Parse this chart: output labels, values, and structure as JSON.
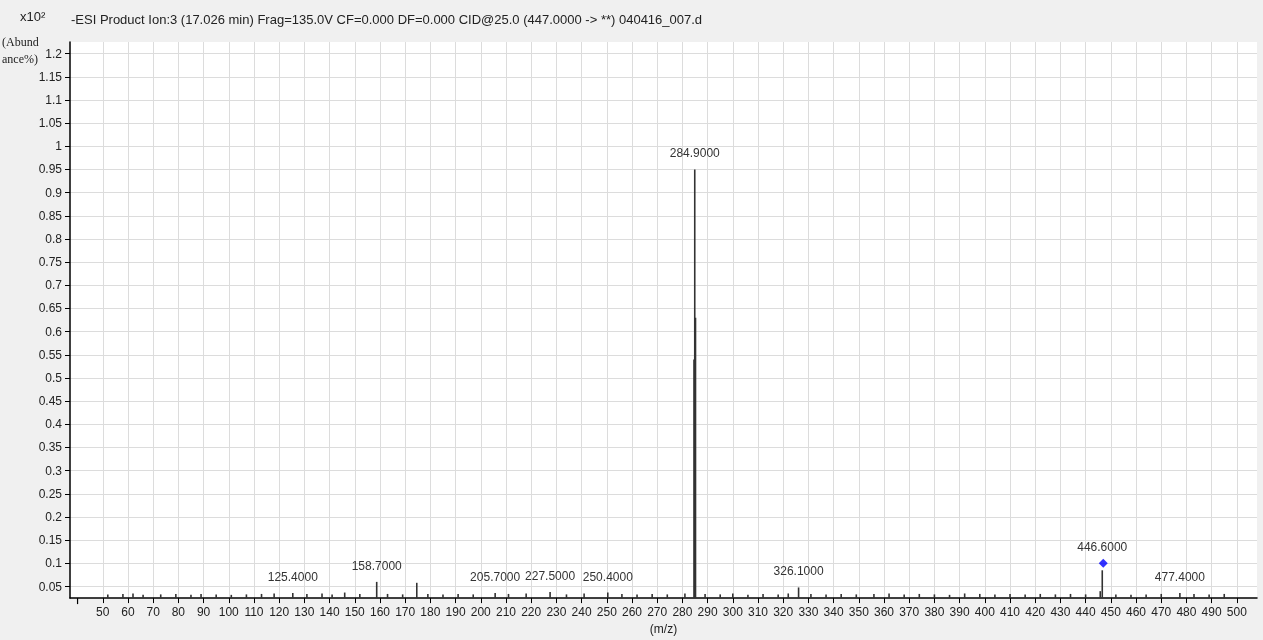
{
  "chart_data": {
    "type": "bar",
    "title": "-ESI Product Ion:3 (17.026 min) Frag=135.0V CF=0.000 DF=0.000 CID@25.0 (447.0000 -> **) 040416_007.d",
    "xlabel": "(m/z)",
    "ylabel": "(Abundance%)",
    "annotations": [
      "x10²",
      {
        "text": "125.4000",
        "x": 125.4,
        "y": 0.036
      },
      {
        "text": "158.7000",
        "x": 158.7,
        "y": 0.06
      },
      {
        "text": "205.7000",
        "x": 205.7,
        "y": 0.036
      },
      {
        "text": "227.5000",
        "x": 227.5,
        "y": 0.038
      },
      {
        "text": "250.4000",
        "x": 250.4,
        "y": 0.037
      },
      {
        "text": "284.9000",
        "x": 284.9,
        "y": 0.95
      },
      {
        "text": "326.1000",
        "x": 326.1,
        "y": 0.048
      },
      {
        "text": "446.6000",
        "x": 446.6,
        "y": 0.1
      },
      {
        "text": "477.4000",
        "x": 477.4,
        "y": 0.036
      }
    ],
    "series": [
      {
        "color": "#333333",
        "x": [
          52,
          58,
          62,
          66,
          73,
          79,
          85,
          89,
          95,
          101,
          107,
          113,
          118,
          125.4,
          131,
          137,
          141,
          146,
          152,
          158.7,
          163,
          169,
          174.6,
          179,
          185,
          191,
          197,
          205.7,
          211,
          218,
          227.5,
          234,
          241,
          250.4,
          256,
          262,
          268,
          274,
          281,
          284.6,
          284.9,
          285.2,
          289,
          295,
          300,
          306,
          312,
          318,
          322,
          326.1,
          331,
          337,
          343,
          349,
          356,
          362,
          368,
          374,
          380,
          386,
          392,
          398,
          404,
          410,
          416,
          422,
          428,
          434,
          440,
          445.8,
          446.6,
          452,
          458,
          464,
          470,
          477.4,
          483,
          489,
          495
        ],
        "values": [
          0.033,
          0.034,
          0.035,
          0.032,
          0.033,
          0.034,
          0.032,
          0.034,
          0.033,
          0.032,
          0.033,
          0.034,
          0.035,
          0.036,
          0.034,
          0.035,
          0.033,
          0.037,
          0.034,
          0.06,
          0.034,
          0.033,
          0.058,
          0.034,
          0.033,
          0.034,
          0.033,
          0.036,
          0.034,
          0.035,
          0.038,
          0.033,
          0.035,
          0.037,
          0.034,
          0.033,
          0.034,
          0.033,
          0.035,
          0.54,
          0.95,
          0.63,
          0.034,
          0.033,
          0.035,
          0.032,
          0.034,
          0.033,
          0.035,
          0.048,
          0.034,
          0.033,
          0.034,
          0.033,
          0.034,
          0.035,
          0.033,
          0.034,
          0.033,
          0.032,
          0.035,
          0.034,
          0.033,
          0.034,
          0.033,
          0.034,
          0.033,
          0.034,
          0.033,
          0.04,
          0.085,
          0.033,
          0.032,
          0.033,
          0.034,
          0.036,
          0.034,
          0.033,
          0.034
        ]
      },
      {
        "type": "scatter",
        "marker": "diamond",
        "color": "#0000ff",
        "x": [
          447
        ],
        "values": [
          0.1
        ]
      }
    ],
    "xlim": [
      37,
      508
    ],
    "xticks": [
      {
        "value": 40,
        "label": null
      },
      50,
      60,
      70,
      80,
      90,
      100,
      110,
      120,
      130,
      140,
      150,
      160,
      170,
      180,
      190,
      200,
      210,
      220,
      230,
      240,
      250,
      260,
      270,
      280,
      290,
      300,
      310,
      320,
      330,
      340,
      350,
      360,
      370,
      380,
      390,
      400,
      410,
      420,
      430,
      440,
      450,
      460,
      470,
      480,
      490,
      500
    ],
    "ylim": [
      0.025,
      1.225
    ],
    "yticks": [
      0.05,
      0.1,
      0.15,
      0.2,
      0.25,
      0.3,
      0.35,
      0.4,
      0.45,
      0.5,
      0.55,
      0.6,
      0.65,
      0.7,
      0.75,
      0.8,
      0.85,
      0.9,
      0.95,
      1,
      1.05,
      1.1,
      1.15,
      1.2
    ],
    "grid": true
  }
}
